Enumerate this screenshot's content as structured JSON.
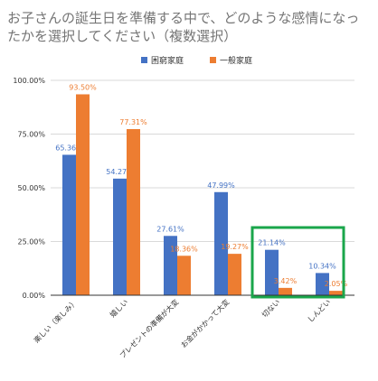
{
  "chart_data": {
    "type": "bar",
    "title": "お子さんの誕生日を準備する中で、どのような感情になったかを選択してください（複数選択）",
    "categories": [
      "楽しい（楽しみ）",
      "嬉しい",
      "プレゼントの準備が大変",
      "お金がかかって大変",
      "切ない",
      "しんどい"
    ],
    "series": [
      {
        "name": "困窮家庭",
        "color": "#4472c4",
        "values": [
          65.36,
          54.27,
          27.61,
          47.99,
          21.14,
          10.34
        ],
        "labels": [
          "65.36%",
          "54.27%",
          "27.61%",
          "47.99%",
          "21.14%",
          "10.34%"
        ]
      },
      {
        "name": "一般家庭",
        "color": "#ed7d31",
        "values": [
          93.5,
          77.31,
          18.36,
          19.27,
          3.42,
          2.05
        ],
        "labels": [
          "93.50%",
          "77.31%",
          "18.36%",
          "19.27%",
          "3.42%",
          "2.05%"
        ]
      }
    ],
    "yticks": [
      "0.00%",
      "25.00%",
      "50.00%",
      "75.00%",
      "100.00%"
    ],
    "ylim": [
      0,
      100
    ],
    "legend_position": "top",
    "highlight": {
      "color": "#1aa64b",
      "categories": [
        "切ない",
        "しんどい"
      ]
    }
  }
}
